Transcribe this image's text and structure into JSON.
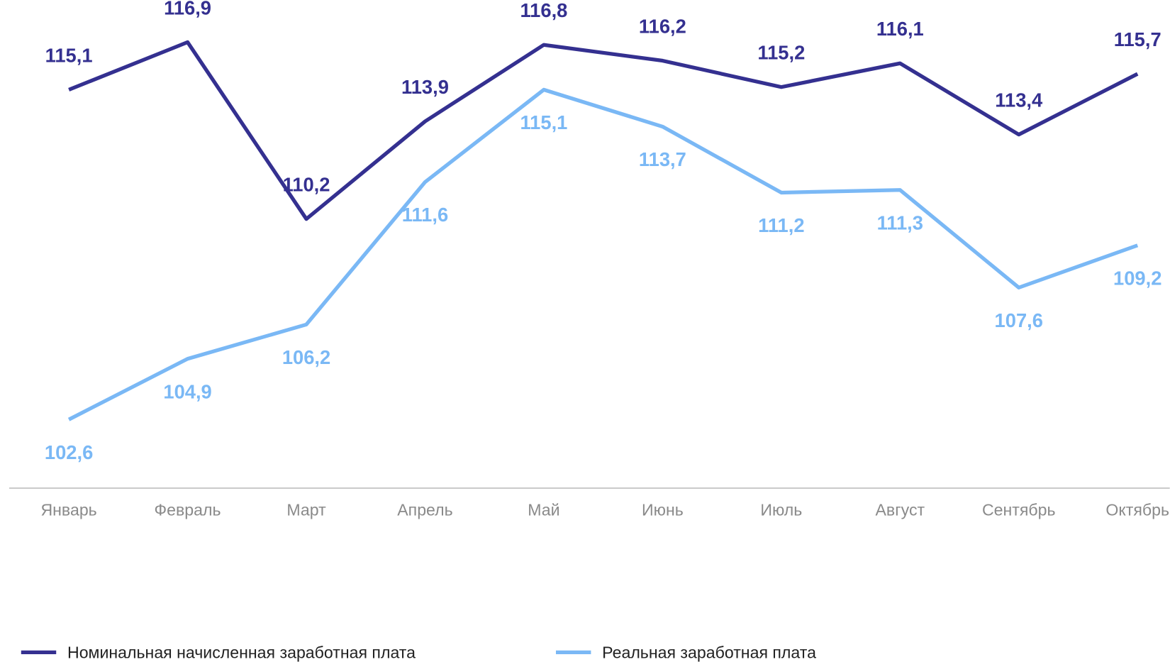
{
  "chart_data": {
    "type": "line",
    "categories": [
      "Январь",
      "Февраль",
      "Март",
      "Апрель",
      "Май",
      "Июнь",
      "Июль",
      "Август",
      "Сентябрь",
      "Октябрь"
    ],
    "series": [
      {
        "name": "Номинальная начисленная заработная плата",
        "color": "#343090",
        "values": [
          115.1,
          116.9,
          110.2,
          113.9,
          116.8,
          116.2,
          115.2,
          116.1,
          113.4,
          115.7
        ],
        "value_labels": [
          "115,1",
          "116,9",
          "110,2",
          "113,9",
          "116,8",
          "116,2",
          "115,2",
          "116,1",
          "113,4",
          "115,7"
        ]
      },
      {
        "name": "Реальная заработная плата",
        "color": "#7ab8f5",
        "values": [
          102.6,
          104.9,
          106.2,
          111.6,
          115.1,
          113.7,
          111.2,
          111.3,
          107.6,
          109.2
        ],
        "value_labels": [
          "102,6",
          "104,9",
          "106,2",
          "111,6",
          "115,1",
          "113,7",
          "111,2",
          "111,3",
          "107,6",
          "109,2"
        ]
      }
    ],
    "ylim": [
      100,
      118.5
    ]
  }
}
